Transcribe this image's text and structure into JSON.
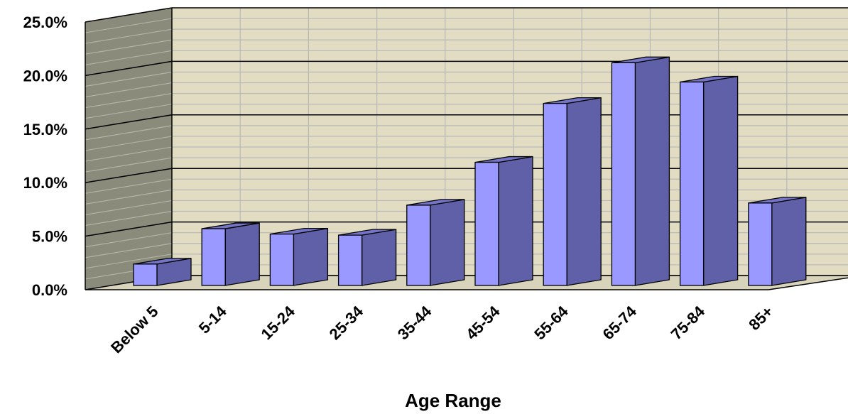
{
  "chart_data": {
    "type": "bar",
    "title": "",
    "xlabel": "Age Range",
    "ylabel": "",
    "categories": [
      "Below 5",
      "5-14",
      "15-24",
      "25-34",
      "35-44",
      "45-54",
      "55-64",
      "65-74",
      "75-84",
      "85+"
    ],
    "values": [
      2.0,
      5.3,
      4.8,
      4.7,
      7.5,
      11.5,
      17.0,
      20.8,
      19.0,
      7.7
    ],
    "ylim": [
      0,
      25
    ],
    "y_ticks": [
      0,
      5,
      10,
      15,
      20,
      25
    ],
    "y_tick_labels": [
      "0.0%",
      "5.0%",
      "10.0%",
      "15.0%",
      "20.0%",
      "25.0%"
    ],
    "grid": true,
    "legend": "none",
    "style": "3d-column",
    "colors": {
      "bar_front": "#9999ff",
      "bar_side": "#6060a8",
      "bar_top": "#7474c8",
      "back_wall": "#e1dcc2",
      "side_wall": "#8b8b7c",
      "floor": "#d8d3bb",
      "major_grid": "#000000",
      "minor_grid": "#b8b8b8"
    }
  }
}
